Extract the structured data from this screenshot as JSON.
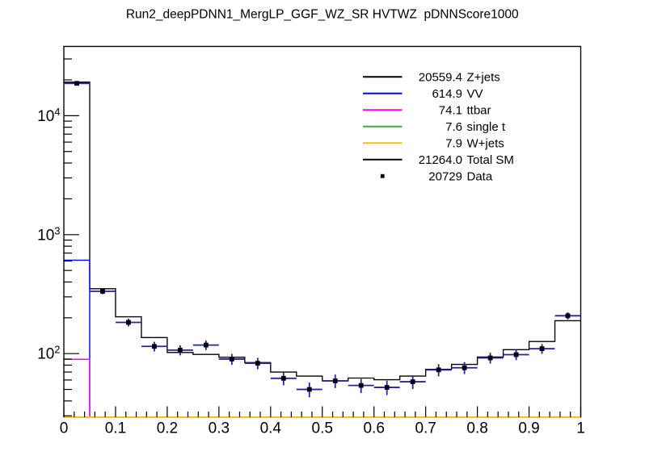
{
  "title": "Run2_deepPDNN1_MergLP_GGF_WZ_SR HVTWZ  pDNNScore1000",
  "colors": {
    "background": "#ffffff",
    "frame": "#000000",
    "total_sm": "#000000",
    "zjets": "#000000",
    "vv": "#0000ff",
    "ttbar": "#ff00ff",
    "single_t": "#2cb42c",
    "wjets": "#ffc20a",
    "data_errorbar": "#2222aa",
    "data_marker": "#000000"
  },
  "chart_data": {
    "type": "line",
    "subtype": "step-histogram-with-data-points",
    "title": "Run2_deepPDNN1_MergLP_GGF_WZ_SR HVTWZ  pDNNScore1000",
    "xlabel": "",
    "ylabel": "",
    "grid": false,
    "bin_edges": [
      0,
      0.05,
      0.1,
      0.15,
      0.2,
      0.25,
      0.3,
      0.35,
      0.4,
      0.45,
      0.5,
      0.55,
      0.6,
      0.65,
      0.7,
      0.75,
      0.8,
      0.85,
      0.9,
      0.95,
      1
    ],
    "series": [
      {
        "name": "Total SM",
        "legend_value": "21264.0",
        "color": "#000000",
        "style": "step",
        "values": [
          19141.5,
          351,
          204,
          136.5,
          102.2,
          98.5,
          93.2,
          84,
          70,
          64.7,
          59,
          62.3,
          60.3,
          64.7,
          73.8,
          81.2,
          93.6,
          108,
          126.5,
          189
        ]
      },
      {
        "name": "Z+jets",
        "legend_value": "20559.4",
        "color": "#000000",
        "style": "step",
        "note": "visually coincident with Total SM outline",
        "values": null
      },
      {
        "name": "VV",
        "legend_value": "614.9",
        "color": "#0000ff",
        "style": "step",
        "note": "stacked cumulative line; bins 2-20 below y-axis minimum (clipped at frame bottom)",
        "values": [
          610,
          null,
          null,
          null,
          null,
          null,
          null,
          null,
          null,
          null,
          null,
          null,
          null,
          null,
          null,
          null,
          null,
          null,
          null,
          null
        ]
      },
      {
        "name": "ttbar",
        "legend_value": "74.1",
        "color": "#ff00ff",
        "style": "step",
        "note": "stacked cumulative line; bins 2-20 below y-axis minimum (clipped at frame bottom)",
        "values": [
          89.6,
          null,
          null,
          null,
          null,
          null,
          null,
          null,
          null,
          null,
          null,
          null,
          null,
          null,
          null,
          null,
          null,
          null,
          null,
          null
        ]
      },
      {
        "name": "single t",
        "legend_value": "7.6",
        "color": "#2cb42c",
        "style": "step",
        "note": "entirely below y-axis minimum, hidden under W+jets line at frame bottom",
        "values": [
          null,
          null,
          null,
          null,
          null,
          null,
          null,
          null,
          null,
          null,
          null,
          null,
          null,
          null,
          null,
          null,
          null,
          null,
          null,
          null
        ]
      },
      {
        "name": "W+jets",
        "legend_value": "7.9",
        "color": "#ffc20a",
        "style": "step",
        "note": "entirely below y-axis minimum, drawn clipped along frame bottom",
        "values": [
          null,
          null,
          null,
          null,
          null,
          null,
          null,
          null,
          null,
          null,
          null,
          null,
          null,
          null,
          null,
          null,
          null,
          null,
          null,
          null
        ]
      }
    ],
    "data_points": {
      "name": "Data",
      "legend_value": "20729",
      "marker": "filled-square",
      "marker_color": "#000000",
      "errorbar_color": "#2222aa",
      "errors": "sqrt(N), horizontal bars span full bin width",
      "values": [
        18707,
        334,
        183,
        115,
        107,
        118,
        90,
        83,
        62,
        50,
        59,
        54,
        52,
        58,
        73,
        76,
        92,
        98,
        110,
        208
      ]
    },
    "axes": {
      "x": {
        "min": 0,
        "max": 1,
        "major_ticks": [
          0,
          0.1,
          0.2,
          0.3,
          0.4,
          0.5,
          0.6,
          0.7,
          0.8,
          0.9,
          1
        ],
        "labels": [
          "0",
          "0.1",
          "0.2",
          "0.3",
          "0.4",
          "0.5",
          "0.6",
          "0.7",
          "0.8",
          "0.9",
          "1"
        ],
        "minor_step": 0.02
      },
      "y": {
        "scale": "log",
        "min": 29.2,
        "max": 38250,
        "major_ticks": [
          {
            "value": 100,
            "mant": "10",
            "exp": "2"
          },
          {
            "value": 1000,
            "mant": "10",
            "exp": "3"
          },
          {
            "value": 10000,
            "mant": "10",
            "exp": "4"
          }
        ]
      }
    },
    "legend_position": "top-right-inside"
  },
  "legend": {
    "entries": [
      {
        "value": "20559.4",
        "label": "Z+jets",
        "color": "#000000",
        "type": "line"
      },
      {
        "value": "614.9",
        "label": "VV",
        "color": "#0000ff",
        "type": "line"
      },
      {
        "value": "74.1",
        "label": "ttbar",
        "color": "#ff00ff",
        "type": "line"
      },
      {
        "value": "7.6",
        "label": "single t",
        "color": "#2cb42c",
        "type": "line"
      },
      {
        "value": "7.9",
        "label": "W+jets",
        "color": "#ffc20a",
        "type": "line"
      },
      {
        "value": "21264.0",
        "label": "Total SM",
        "color": "#000000",
        "type": "line"
      },
      {
        "value": "20729",
        "label": "Data",
        "color": "#000000",
        "type": "marker"
      }
    ]
  }
}
